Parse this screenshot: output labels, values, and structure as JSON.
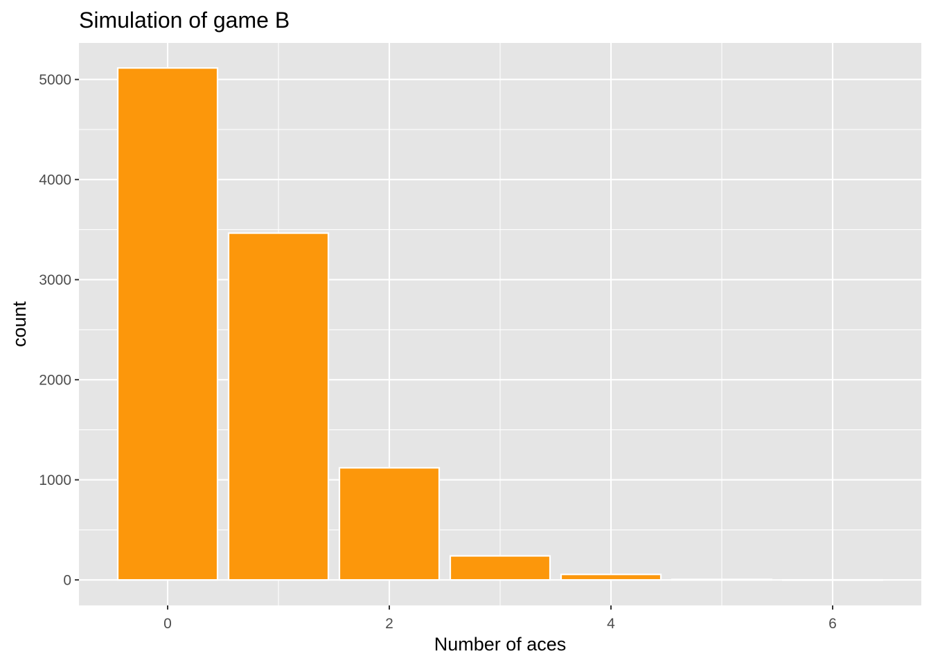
{
  "chart_data": {
    "type": "bar",
    "title": "Simulation of game B",
    "xlabel": "Number of aces",
    "ylabel": "count",
    "x": [
      0,
      1,
      2,
      3,
      4,
      5,
      6
    ],
    "values": [
      5115,
      3465,
      1120,
      240,
      55,
      5,
      1
    ],
    "xlim": [
      -0.8,
      6.8
    ],
    "ylim": [
      -255,
      5365
    ],
    "x_ticks": [
      0,
      2,
      4,
      6
    ],
    "y_ticks": [
      0,
      1000,
      2000,
      3000,
      4000,
      5000
    ],
    "grid": true,
    "legend": "none",
    "colors": {
      "bar_fill": "#fc970b",
      "bar_outline": "#ffffff",
      "panel_background": "#e5e5e5",
      "grid_line": "#ffffff",
      "tick_label": "#4d4d4d",
      "tick_mark": "#333333"
    }
  }
}
